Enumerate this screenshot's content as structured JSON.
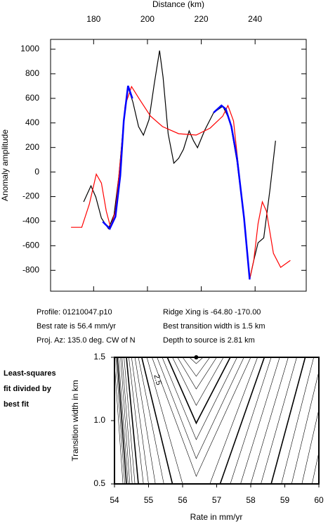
{
  "chart_data": [
    {
      "type": "line",
      "xlabel": "Distance (km)",
      "ylabel": "Anomaly amplitude",
      "xlim": [
        164,
        259
      ],
      "xticks": [
        180,
        200,
        220,
        240
      ],
      "ylim": [
        -970,
        1080
      ],
      "yticks": [
        -800,
        -600,
        -400,
        -200,
        0,
        200,
        400,
        600,
        800,
        1000
      ],
      "series": [
        {
          "color": "#000000",
          "x": [
            176.3,
            179,
            180.8,
            182.9,
            185.5,
            187.6,
            189.4,
            191,
            192.8,
            194.6,
            196.7,
            198.5,
            200.6,
            202.5,
            204.5,
            205.8,
            207.7,
            209.8,
            211.6,
            213.4,
            215.5,
            217.1,
            218.6,
            221.3,
            224.6,
            228,
            230.7,
            233.3,
            235.9,
            238,
            239.5,
            241.1,
            243.2,
            245.5,
            247.6
          ],
          "values": [
            -243,
            -112,
            -203,
            -375,
            -461,
            -347,
            -31,
            370,
            691,
            570,
            370,
            300,
            427,
            713,
            989,
            771,
            312,
            72,
            112,
            186,
            335,
            255,
            198,
            341,
            484,
            536,
            416,
            83,
            -375,
            -874,
            -719,
            -576,
            -536,
            -146,
            255
          ]
        },
        {
          "color": "#ff0000",
          "x": [
            171.6,
            175.6,
            178.4,
            181,
            182.9,
            184.7,
            186.3,
            188.1,
            189.9,
            191.7,
            194.1,
            197.2,
            201.1,
            205.6,
            211.6,
            218.1,
            223.3,
            228,
            229.9,
            232,
            236.4,
            238,
            239.5,
            241.1,
            242.7,
            244.2,
            246.8,
            249.5,
            253.1
          ],
          "values": [
            -450,
            -450,
            -261,
            -17,
            -90,
            -318,
            -450,
            -318,
            83,
            542,
            696,
            587,
            456,
            370,
            312,
            301,
            358,
            456,
            542,
            416,
            -490,
            -874,
            -719,
            -421,
            -243,
            -318,
            -662,
            -776,
            -719
          ]
        },
        {
          "color": "#0000ff",
          "x": [
            183.4,
            186,
            188.1,
            189.9,
            191.2,
            192.8,
            194.4,
            null,
            224.6,
            227.5,
            229.1,
            231.2,
            233.3,
            235.9,
            238
          ],
          "values": [
            -404,
            -461,
            -364,
            -31,
            416,
            702,
            599,
            null,
            484,
            542,
            513,
            370,
            112,
            -375,
            -874
          ]
        }
      ],
      "annotations": [
        "Profile: 01210047.p10",
        "Ridge Xing is -64.80 -170.00",
        "Best rate is 56.4 mm/yr",
        "Best transition width is 1.5 km",
        "Proj. Az: 135.0 deg. CW of N",
        "Depth to source is   2.81 km"
      ]
    },
    {
      "type": "contour",
      "title_lines": [
        "Least-squares",
        "fit divided by",
        "best fit"
      ],
      "xlabel": "Rate in mm/yr",
      "ylabel": "Transition width in km",
      "xlim": [
        54,
        60
      ],
      "xticks": [
        54,
        55,
        56,
        57,
        58,
        59,
        60
      ],
      "ylim": [
        0.5,
        1.5
      ],
      "yticks": [
        0.5,
        {
          "value": 1,
          "label": "1.0"
        },
        1.5
      ],
      "contour_label": "2.5",
      "best_fit": {
        "x": 56.4,
        "y": 1.5
      },
      "contours": [
        {
          "x": [
            56.2,
            56.4,
            56.6
          ],
          "y": [
            1.5,
            1.45,
            1.5
          ]
        },
        {
          "x": [
            56.0,
            56.4,
            56.8
          ],
          "y": [
            1.5,
            1.35,
            1.5
          ]
        },
        {
          "x": [
            55.85,
            56.4,
            57.0
          ],
          "y": [
            1.5,
            1.25,
            1.5
          ]
        },
        {
          "x": [
            55.7,
            56.4,
            57.2
          ],
          "y": [
            1.5,
            1.12,
            1.5
          ]
        },
        {
          "x": [
            55.55,
            56.4,
            57.4
          ],
          "y": [
            1.5,
            0.98,
            1.5
          ]
        },
        {
          "x": [
            55.4,
            56.4,
            57.6
          ],
          "y": [
            1.5,
            0.85,
            1.5
          ]
        },
        {
          "x": [
            55.25,
            56.4,
            57.8
          ],
          "y": [
            1.5,
            0.7,
            1.5
          ]
        },
        {
          "x": [
            55.1,
            56.4,
            58.0
          ],
          "y": [
            1.5,
            0.56,
            1.5
          ]
        },
        {
          "x": [
            54.95,
            56.0,
            null,
            56.8,
            58.2
          ],
          "y": [
            1.5,
            0.5,
            null,
            0.5,
            1.5
          ]
        },
        {
          "x": [
            54.8,
            55.7,
            null,
            57.1,
            58.4
          ],
          "y": [
            1.5,
            0.5,
            null,
            0.5,
            1.5
          ]
        },
        {
          "x": [
            54.7,
            55.45,
            null,
            57.4,
            58.6
          ],
          "y": [
            1.5,
            0.5,
            null,
            0.5,
            1.5
          ]
        },
        {
          "x": [
            54.6,
            55.2,
            null,
            57.7,
            58.85
          ],
          "y": [
            1.5,
            0.5,
            null,
            0.5,
            1.5
          ]
        },
        {
          "x": [
            54.5,
            55.0,
            null,
            58.0,
            59.1
          ],
          "y": [
            1.5,
            0.5,
            null,
            0.5,
            1.5
          ]
        },
        {
          "x": [
            54.42,
            54.85,
            null,
            58.3,
            59.35
          ],
          "y": [
            1.5,
            0.5,
            null,
            0.5,
            1.5
          ]
        },
        {
          "x": [
            54.35,
            54.7,
            null,
            58.6,
            59.6
          ],
          "y": [
            1.5,
            0.5,
            null,
            0.5,
            1.5
          ]
        },
        {
          "x": [
            54.28,
            54.6,
            null,
            58.9,
            59.85
          ],
          "y": [
            1.5,
            0.5,
            null,
            0.5,
            1.5
          ]
        },
        {
          "x": [
            54.22,
            54.52,
            null,
            59.2,
            60.1
          ],
          "y": [
            1.5,
            0.5,
            null,
            0.5,
            1.5
          ]
        },
        {
          "x": [
            54.18,
            54.45,
            null,
            59.5,
            60.35
          ],
          "y": [
            1.5,
            0.5,
            null,
            0.5,
            1.5
          ]
        },
        {
          "x": [
            54.12,
            54.4,
            null,
            59.8,
            60.6
          ],
          "y": [
            1.5,
            0.5,
            null,
            0.5,
            1.5
          ]
        },
        {
          "x": [
            54.08,
            54.35,
            null,
            60.1,
            60.9
          ],
          "y": [
            1.5,
            0.5,
            null,
            0.5,
            1.5
          ]
        },
        {
          "x": [
            54.04,
            54.3
          ],
          "y": [
            1.5,
            0.5
          ]
        },
        {
          "x": [
            54.0,
            54.25
          ],
          "y": [
            1.45,
            0.5
          ]
        }
      ]
    }
  ]
}
